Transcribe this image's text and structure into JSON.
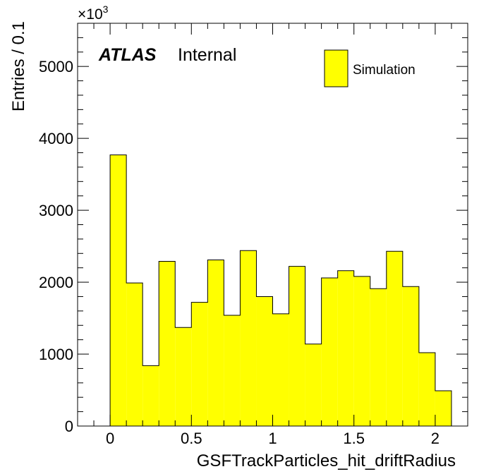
{
  "chart_data": {
    "type": "bar",
    "histogram": true,
    "bin_width": 0.1,
    "x_bin_edges": [
      0,
      0.1,
      0.2,
      0.3,
      0.4,
      0.5,
      0.6,
      0.7,
      0.8,
      0.9,
      1.0,
      1.1,
      1.2,
      1.3,
      1.4,
      1.5,
      1.6,
      1.7,
      1.8,
      1.9,
      2.0,
      2.1
    ],
    "values": [
      3770,
      1990,
      840,
      2290,
      1370,
      1720,
      2310,
      1540,
      2440,
      1800,
      1560,
      2220,
      1140,
      2060,
      2160,
      2080,
      1910,
      2430,
      1940,
      1020,
      490
    ],
    "value_multiplier_label": "×10",
    "value_multiplier_exponent": "3",
    "xlabel": "GSFTrackParticles_hit_driftRadius",
    "ylabel": "Entries / 0.1",
    "xlim": [
      -0.2,
      2.2
    ],
    "ylim": [
      0,
      5600
    ],
    "x_ticks": [
      "0",
      "0.5",
      "1",
      "1.5",
      "2"
    ],
    "x_tick_values": [
      0,
      0.5,
      1,
      1.5,
      2
    ],
    "y_ticks": [
      "0",
      "1000",
      "2000",
      "3000",
      "4000",
      "5000"
    ],
    "y_tick_values": [
      0,
      1000,
      2000,
      3000,
      4000,
      5000
    ],
    "grid": false,
    "fill_color": "#ffff00",
    "line_color": "#000000",
    "legend": {
      "position": "top-right",
      "entries": [
        {
          "label": "Simulation",
          "color": "#ffff00"
        }
      ]
    },
    "annotation": {
      "experiment": "ATLAS",
      "status": "Internal",
      "position": "top-left"
    }
  }
}
